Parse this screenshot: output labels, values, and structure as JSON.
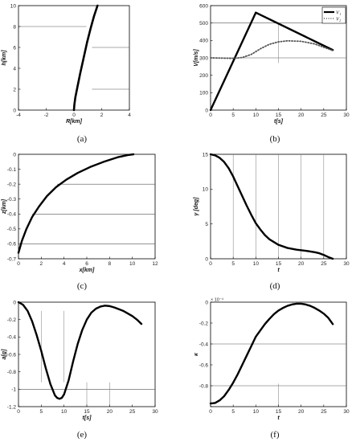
{
  "chart_data": [
    {
      "id": "a",
      "type": "line",
      "caption": "(a)",
      "xlabel": "R[km]",
      "ylabel": "h[km]",
      "xlim": [
        -4,
        4
      ],
      "ylim": [
        0,
        10
      ],
      "xticks": [
        -4,
        -2,
        0,
        2,
        4
      ],
      "yticks": [
        0,
        2,
        4,
        6,
        8,
        10
      ],
      "xtick_labels": [
        "-4",
        "-2",
        "0",
        "2",
        "4"
      ],
      "ytick_labels": [
        "0",
        "2",
        "4",
        "6",
        "8",
        "10"
      ],
      "series": [
        {
          "style": "solid",
          "color": "#000000",
          "width": 2.6,
          "x": [
            0,
            0.03,
            0.1,
            0.25,
            0.45,
            0.7,
            0.95,
            1.2,
            1.45,
            1.7
          ],
          "y": [
            0,
            0.5,
            1.2,
            2.2,
            3.5,
            5,
            6.5,
            7.8,
            9,
            10
          ]
        }
      ],
      "refs": [
        {
          "axis": "y",
          "value": 8,
          "from": -4,
          "to": 0.9
        },
        {
          "axis": "y",
          "value": 6,
          "from": 1.3,
          "to": 4
        },
        {
          "axis": "y",
          "value": 2,
          "from": 1.3,
          "to": 4
        }
      ]
    },
    {
      "id": "b",
      "type": "line",
      "caption": "(b)",
      "xlabel": "t[s]",
      "ylabel": "V[m/s]",
      "xlim": [
        0,
        30
      ],
      "ylim": [
        0,
        600
      ],
      "xticks": [
        0,
        5,
        10,
        15,
        20,
        25,
        30
      ],
      "yticks": [
        0,
        100,
        200,
        300,
        400,
        500,
        600
      ],
      "xtick_labels": [
        "0",
        "5",
        "10",
        "15",
        "20",
        "25",
        "30"
      ],
      "ytick_labels": [
        "0",
        "100",
        "200",
        "300",
        "400",
        "500",
        "600"
      ],
      "legend": {
        "position": "top-right",
        "entries": [
          "V₁",
          "V₂"
        ]
      },
      "series": [
        {
          "name": "V₁",
          "style": "solid",
          "color": "#000000",
          "width": 2.4,
          "x": [
            0,
            10,
            27
          ],
          "y": [
            0,
            560,
            345
          ]
        },
        {
          "name": "V₂",
          "style": "dotted",
          "color": "#555555",
          "width": 1.8,
          "x": [
            0,
            5,
            7,
            9,
            11,
            13,
            15,
            17,
            20,
            23,
            27
          ],
          "y": [
            300,
            297,
            302,
            320,
            352,
            378,
            392,
            398,
            395,
            380,
            342
          ]
        }
      ],
      "refs": [
        {
          "axis": "y",
          "value": 500,
          "from": 0,
          "to": 30
        },
        {
          "axis": "y",
          "value": 300,
          "from": 0,
          "to": 30
        },
        {
          "axis": "x",
          "value": 15,
          "from": 270,
          "to": 500
        }
      ]
    },
    {
      "id": "c",
      "type": "line",
      "caption": "(c)",
      "xlabel": "x[km]",
      "ylabel": "z[km]",
      "xlim": [
        0,
        12
      ],
      "ylim": [
        -0.7,
        0
      ],
      "xticks": [
        0,
        2,
        4,
        6,
        8,
        10,
        12
      ],
      "yticks": [
        -0.7,
        -0.6,
        -0.5,
        -0.4,
        -0.3,
        -0.2,
        -0.1,
        0
      ],
      "xtick_labels": [
        "0",
        "2",
        "4",
        "6",
        "8",
        "10",
        "12"
      ],
      "ytick_labels": [
        "-0.7",
        "-0.6",
        "-0.5",
        "-0.4",
        "-0.3",
        "-0.2",
        "-0.1",
        "0"
      ],
      "series": [
        {
          "style": "solid",
          "color": "#000000",
          "width": 2.4,
          "x": [
            0,
            0.3,
            0.7,
            1.2,
            1.8,
            2.5,
            3.3,
            4.2,
            5.2,
            6.3,
            7.5,
            8.7,
            9.6,
            10.1
          ],
          "y": [
            -0.66,
            -0.58,
            -0.5,
            -0.42,
            -0.35,
            -0.28,
            -0.22,
            -0.17,
            -0.125,
            -0.085,
            -0.05,
            -0.02,
            -0.005,
            0
          ]
        }
      ],
      "refs": [
        {
          "axis": "y",
          "value": -0.2,
          "from": 3.4,
          "to": 12
        },
        {
          "axis": "y",
          "value": -0.4,
          "from": 1.2,
          "to": 12
        },
        {
          "axis": "y",
          "value": -0.6,
          "from": 0.25,
          "to": 12
        }
      ]
    },
    {
      "id": "d",
      "type": "line",
      "caption": "(d)",
      "xlabel": "t",
      "ylabel": "γ [deg]",
      "xlim": [
        0,
        30
      ],
      "ylim": [
        0,
        15
      ],
      "xticks": [
        0,
        5,
        10,
        15,
        20,
        25,
        30
      ],
      "yticks": [
        0,
        5,
        10,
        15
      ],
      "xtick_labels": [
        "0",
        "5",
        "10",
        "15",
        "20",
        "25",
        "30"
      ],
      "ytick_labels": [
        "0",
        "5",
        "10",
        "15"
      ],
      "series": [
        {
          "style": "solid",
          "color": "#000000",
          "width": 2.4,
          "x": [
            0,
            1,
            2,
            3,
            4,
            5,
            6,
            7,
            8,
            9,
            10,
            11,
            12,
            13,
            15,
            17,
            19,
            21,
            23,
            24,
            25,
            26,
            27
          ],
          "y": [
            15,
            14.85,
            14.5,
            13.9,
            13,
            11.8,
            10.4,
            9,
            7.6,
            6.3,
            5.1,
            4.2,
            3.4,
            2.8,
            2.0,
            1.55,
            1.3,
            1.15,
            0.95,
            0.8,
            0.55,
            0.25,
            0
          ]
        }
      ],
      "refs": [
        {
          "axis": "x",
          "value": 5,
          "from": 0,
          "to": 15
        },
        {
          "axis": "x",
          "value": 10,
          "from": 0,
          "to": 15
        },
        {
          "axis": "x",
          "value": 15,
          "from": 0,
          "to": 15
        },
        {
          "axis": "x",
          "value": 20,
          "from": 0,
          "to": 15
        },
        {
          "axis": "x",
          "value": 25,
          "from": 0,
          "to": 15
        }
      ]
    },
    {
      "id": "e",
      "type": "line",
      "caption": "(e)",
      "xlabel": "t[s]",
      "ylabel": "a[g]",
      "xlim": [
        0,
        30
      ],
      "ylim": [
        -1.2,
        0
      ],
      "xticks": [
        0,
        5,
        10,
        15,
        20,
        25,
        30
      ],
      "yticks": [
        -1.2,
        -1,
        -0.8,
        -0.6,
        -0.4,
        -0.2,
        0
      ],
      "xtick_labels": [
        "0",
        "5",
        "10",
        "15",
        "20",
        "25",
        "30"
      ],
      "ytick_labels": [
        "-1.2",
        "-1",
        "-0.8",
        "-0.6",
        "-0.4",
        "-0.2",
        "0"
      ],
      "series": [
        {
          "style": "solid",
          "color": "#000000",
          "width": 2.4,
          "x": [
            0,
            1,
            2,
            3,
            4,
            5,
            6,
            7,
            8,
            8.5,
            9,
            9.5,
            10,
            11,
            12,
            13,
            14,
            15,
            16,
            17,
            18,
            19,
            20,
            21,
            22,
            23,
            24,
            25,
            26,
            27
          ],
          "y": [
            0,
            -0.03,
            -0.1,
            -0.22,
            -0.38,
            -0.56,
            -0.76,
            -0.94,
            -1.07,
            -1.1,
            -1.11,
            -1.1,
            -1.06,
            -0.9,
            -0.68,
            -0.48,
            -0.32,
            -0.2,
            -0.12,
            -0.075,
            -0.05,
            -0.04,
            -0.045,
            -0.06,
            -0.08,
            -0.1,
            -0.13,
            -0.16,
            -0.2,
            -0.25
          ]
        }
      ],
      "refs": [
        {
          "axis": "y",
          "value": -1,
          "from": 0,
          "to": 30
        },
        {
          "axis": "x",
          "value": 5,
          "from": -0.92,
          "to": -0.1
        },
        {
          "axis": "x",
          "value": 10,
          "from": -0.92,
          "to": -0.1
        },
        {
          "axis": "x",
          "value": 15,
          "from": -1.2,
          "to": -0.92
        },
        {
          "axis": "x",
          "value": 20,
          "from": -1.2,
          "to": -0.92
        }
      ]
    },
    {
      "id": "f",
      "type": "line",
      "caption": "(f)",
      "xlabel": "t",
      "ylabel": "κ",
      "multiplier": "× 10⁻⁴",
      "xlim": [
        0,
        30
      ],
      "ylim": [
        -1.0,
        0
      ],
      "xticks": [
        0,
        5,
        10,
        15,
        20,
        25,
        30
      ],
      "yticks": [
        -1.0,
        -0.8,
        -0.6,
        -0.4,
        -0.2,
        0
      ],
      "xtick_labels": [
        "0",
        "5",
        "10",
        "15",
        "20",
        "25",
        "30"
      ],
      "ytick_labels": [
        "",
        "-0.8",
        "-0.6",
        "-0.4",
        "-0.2",
        "0"
      ],
      "series": [
        {
          "style": "solid",
          "color": "#000000",
          "width": 2.4,
          "x": [
            0,
            1,
            2,
            3,
            4,
            5,
            6,
            7,
            8,
            9,
            10,
            11,
            12,
            13,
            14,
            15,
            16,
            17,
            18,
            19,
            20,
            21,
            22,
            23,
            24,
            25,
            26,
            27
          ],
          "y": [
            -0.97,
            -0.965,
            -0.94,
            -0.9,
            -0.84,
            -0.77,
            -0.69,
            -0.6,
            -0.51,
            -0.42,
            -0.33,
            -0.27,
            -0.21,
            -0.16,
            -0.115,
            -0.08,
            -0.055,
            -0.035,
            -0.022,
            -0.015,
            -0.015,
            -0.022,
            -0.035,
            -0.055,
            -0.08,
            -0.11,
            -0.15,
            -0.21
          ]
        }
      ],
      "refs": [
        {
          "axis": "y",
          "value": -0.4,
          "from": 0,
          "to": 30
        },
        {
          "axis": "y",
          "value": -0.8,
          "from": 0,
          "to": 30
        },
        {
          "axis": "x",
          "value": 15,
          "from": -1.0,
          "to": -0.78
        }
      ]
    }
  ]
}
